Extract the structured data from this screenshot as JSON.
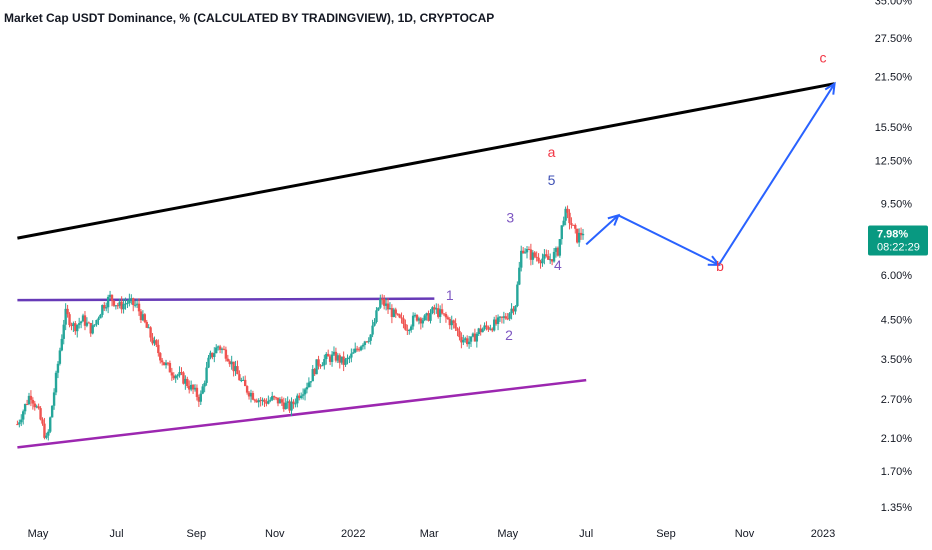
{
  "title": "Market Cap USDT Dominance, % (CALCULATED BY TRADINGVIEW), 1D, CRYPTOCAP",
  "chart_data": {
    "type": "candlestick",
    "title": "Market Cap USDT Dominance, % (CALCULATED BY TRADINGVIEW), 1D, CRYPTOCAP",
    "y_scale": "log",
    "y_ticks": [
      "35.00%",
      "27.50%",
      "21.50%",
      "15.50%",
      "12.50%",
      "9.50%",
      "6.00%",
      "4.50%",
      "3.50%",
      "2.70%",
      "2.10%",
      "1.70%",
      "1.35%"
    ],
    "y_tick_values": [
      35,
      27.5,
      21.5,
      15.5,
      12.5,
      9.5,
      6,
      4.5,
      3.5,
      2.7,
      2.1,
      1.7,
      1.35
    ],
    "x_ticks": [
      "May",
      "Jul",
      "Sep",
      "Nov",
      "2022",
      "Mar",
      "May",
      "Jul",
      "Sep",
      "Nov",
      "2023"
    ],
    "x_tick_dates": [
      "2021-05-01",
      "2021-07-01",
      "2021-09-01",
      "2021-11-01",
      "2022-01-01",
      "2022-03-01",
      "2022-05-01",
      "2022-07-01",
      "2022-09-01",
      "2022-11-01",
      "2023-01-01"
    ],
    "last_price": "7.98%",
    "countdown": "08:22:29",
    "price_path": [
      [
        "2021-04-15",
        2.3
      ],
      [
        "2021-04-25",
        2.8
      ],
      [
        "2021-05-01",
        2.5
      ],
      [
        "2021-05-08",
        2.05
      ],
      [
        "2021-05-15",
        3.1
      ],
      [
        "2021-05-22",
        4.7
      ],
      [
        "2021-05-29",
        4.3
      ],
      [
        "2021-06-05",
        4.5
      ],
      [
        "2021-06-12",
        4.2
      ],
      [
        "2021-06-20",
        4.9
      ],
      [
        "2021-06-26",
        5.2
      ],
      [
        "2021-07-03",
        4.9
      ],
      [
        "2021-07-10",
        5.05
      ],
      [
        "2021-07-17",
        4.9
      ],
      [
        "2021-07-24",
        4.3
      ],
      [
        "2021-07-31",
        3.8
      ],
      [
        "2021-08-07",
        3.4
      ],
      [
        "2021-08-14",
        3.2
      ],
      [
        "2021-08-21",
        3.1
      ],
      [
        "2021-08-28",
        2.9
      ],
      [
        "2021-09-04",
        2.7
      ],
      [
        "2021-09-11",
        3.5
      ],
      [
        "2021-09-18",
        3.8
      ],
      [
        "2021-09-25",
        3.6
      ],
      [
        "2021-10-02",
        3.2
      ],
      [
        "2021-10-09",
        2.9
      ],
      [
        "2021-10-16",
        2.75
      ],
      [
        "2021-10-23",
        2.65
      ],
      [
        "2021-10-30",
        2.7
      ],
      [
        "2021-11-06",
        2.65
      ],
      [
        "2021-11-13",
        2.55
      ],
      [
        "2021-11-20",
        2.8
      ],
      [
        "2021-11-27",
        3.0
      ],
      [
        "2021-12-04",
        3.4
      ],
      [
        "2021-12-11",
        3.5
      ],
      [
        "2021-12-18",
        3.55
      ],
      [
        "2021-12-25",
        3.4
      ],
      [
        "2022-01-01",
        3.6
      ],
      [
        "2022-01-08",
        3.9
      ],
      [
        "2022-01-15",
        4.1
      ],
      [
        "2022-01-22",
        5.1
      ],
      [
        "2022-01-29",
        4.8
      ],
      [
        "2022-02-05",
        4.5
      ],
      [
        "2022-02-12",
        4.3
      ],
      [
        "2022-02-19",
        4.6
      ],
      [
        "2022-02-26",
        4.5
      ],
      [
        "2022-03-05",
        4.8
      ],
      [
        "2022-03-12",
        4.6
      ],
      [
        "2022-03-19",
        4.4
      ],
      [
        "2022-03-26",
        4.0
      ],
      [
        "2022-04-02",
        3.9
      ],
      [
        "2022-04-09",
        4.2
      ],
      [
        "2022-04-16",
        4.3
      ],
      [
        "2022-04-23",
        4.4
      ],
      [
        "2022-04-30",
        4.6
      ],
      [
        "2022-05-07",
        5.0
      ],
      [
        "2022-05-12",
        7.2
      ],
      [
        "2022-05-19",
        6.8
      ],
      [
        "2022-05-26",
        6.7
      ],
      [
        "2022-06-02",
        6.6
      ],
      [
        "2022-06-09",
        7.0
      ],
      [
        "2022-06-14",
        9.0
      ],
      [
        "2022-06-19",
        8.4
      ],
      [
        "2022-06-24",
        7.6
      ],
      [
        "2022-06-29",
        7.98
      ]
    ]
  },
  "overlays": {
    "lines": [
      {
        "name": "upper-trendline",
        "color": "#000000",
        "from": [
          "2021-04-15",
          7.6
        ],
        "to": [
          "2023-01-10",
          20.5
        ]
      },
      {
        "name": "resistance-line",
        "color": "#673ab7",
        "from": [
          "2021-04-15",
          5.1
        ],
        "to": [
          "2022-03-05",
          5.15
        ]
      },
      {
        "name": "lower-support-line",
        "color": "#9c27b0",
        "from": [
          "2021-04-15",
          1.98
        ],
        "to": [
          "2022-07-01",
          3.05
        ]
      }
    ],
    "path_color": "#2962ff",
    "projected_path": [
      [
        "2022-07-01",
        7.3
      ],
      [
        "2022-07-26",
        8.8
      ],
      [
        "2022-10-12",
        6.4
      ],
      [
        "2023-01-10",
        20.5
      ]
    ],
    "labels": [
      {
        "text": "a",
        "color": "#f23645",
        "at": [
          "2022-06-04",
          12.8
        ]
      },
      {
        "text": "5",
        "color": "#3f51b5",
        "at": [
          "2022-06-04",
          10.7
        ]
      },
      {
        "text": "3",
        "color": "#7e57c2",
        "at": [
          "2022-05-03",
          8.4
        ]
      },
      {
        "text": "4",
        "color": "#7e57c2",
        "at": [
          "2022-06-09",
          6.2
        ]
      },
      {
        "text": "1",
        "color": "#7e57c2",
        "at": [
          "2022-03-17",
          5.1
        ]
      },
      {
        "text": "2",
        "color": "#7e57c2",
        "at": [
          "2022-05-02",
          3.95
        ]
      },
      {
        "text": "b",
        "color": "#f23645",
        "at": [
          "2022-10-13",
          6.15
        ]
      },
      {
        "text": "c",
        "color": "#f23645",
        "at": [
          "2023-01-01",
          23.5
        ]
      }
    ]
  },
  "colors": {
    "up": "#26a69a",
    "down": "#ef5350",
    "price_tag": "#089981",
    "tick_text": "#131722"
  }
}
